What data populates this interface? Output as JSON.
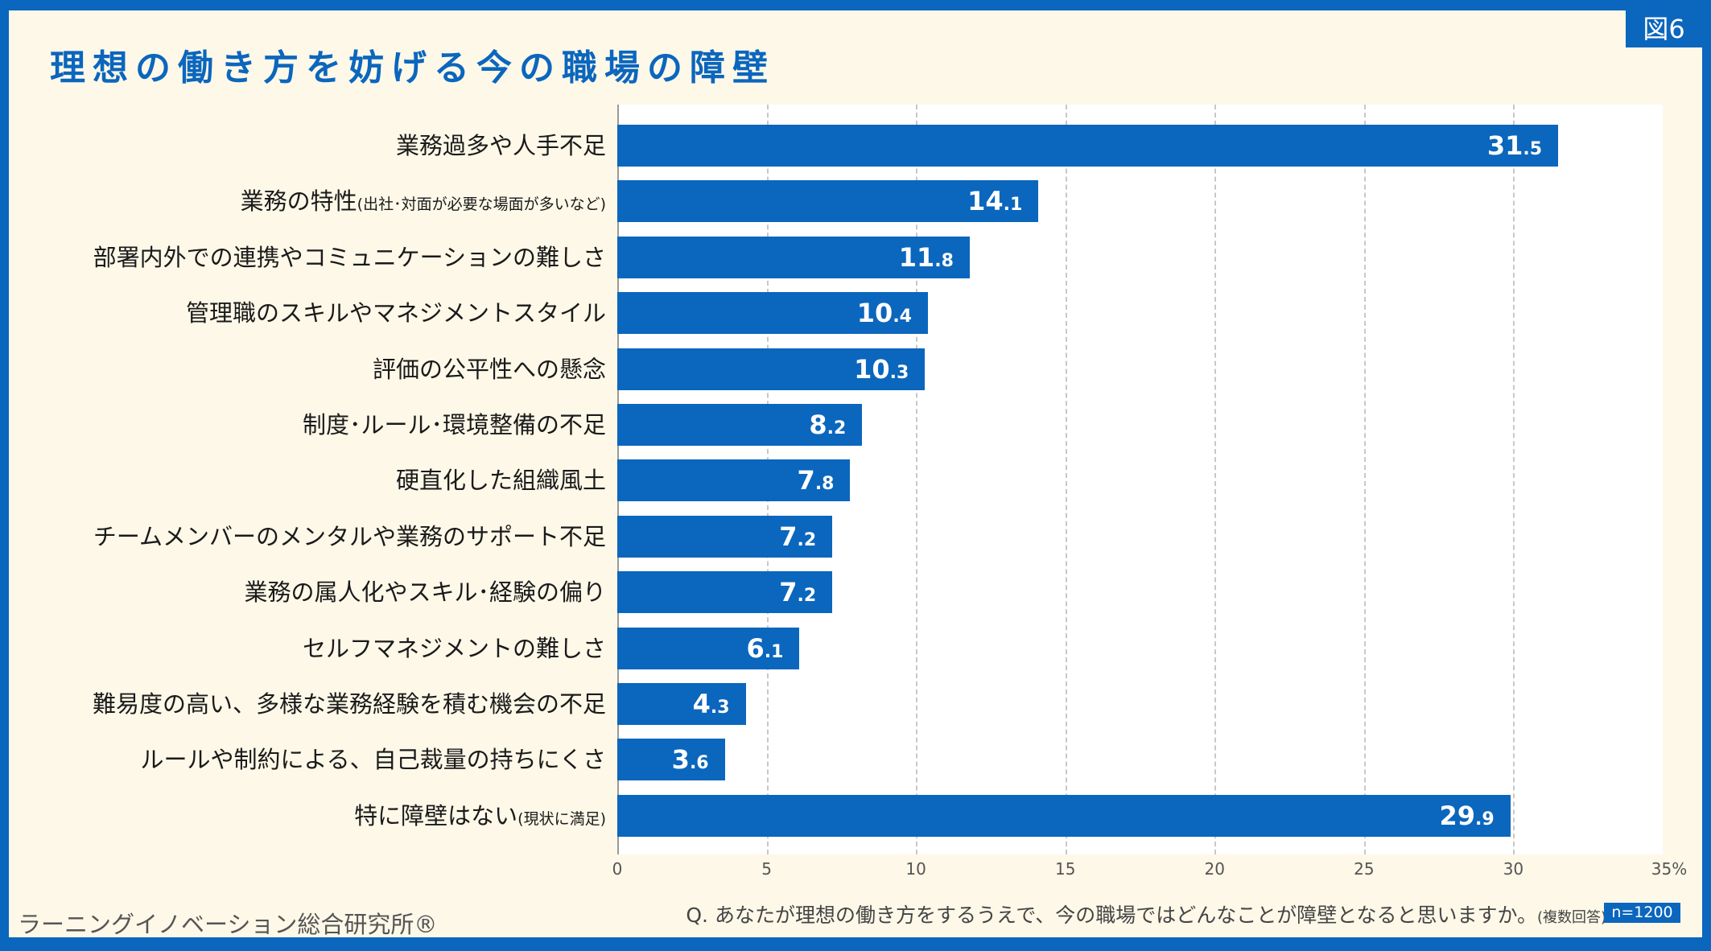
{
  "header": {
    "title": "理想の働き方を妨げる今の職場の障壁",
    "figure_badge": "図6"
  },
  "footer": {
    "source": "ラーニングイノベーション総合研究所®",
    "question": "Q. あなたが理想の働き方をするうえで、今の職場ではどんなことが障壁となると思いますか。",
    "question_note": "(複数回答)",
    "sample_size": "n=1200"
  },
  "colors": {
    "bar": "#0b66bd",
    "frame": "#0b66bd",
    "background": "#fdf8e8"
  },
  "chart_data": {
    "type": "bar",
    "orientation": "horizontal",
    "title": "理想の働き方を妨げる今の職場の障壁",
    "categories": [
      {
        "label": "業務過多や人手不足",
        "note": ""
      },
      {
        "label": "業務の特性",
        "note": "(出社･対面が必要な場面が多いなど)"
      },
      {
        "label": "部署内外での連携やコミュニケーションの難しさ",
        "note": ""
      },
      {
        "label": "管理職のスキルやマネジメントスタイル",
        "note": ""
      },
      {
        "label": "評価の公平性への懸念",
        "note": ""
      },
      {
        "label": "制度･ルール･環境整備の不足",
        "note": ""
      },
      {
        "label": "硬直化した組織風土",
        "note": ""
      },
      {
        "label": "チームメンバーのメンタルや業務のサポート不足",
        "note": ""
      },
      {
        "label": "業務の属人化やスキル･経験の偏り",
        "note": ""
      },
      {
        "label": "セルフマネジメントの難しさ",
        "note": ""
      },
      {
        "label": "難易度の高い、多様な業務経験を積む機会の不足",
        "note": ""
      },
      {
        "label": "ルールや制約による、自己裁量の持ちにくさ",
        "note": ""
      },
      {
        "label": "特に障壁はない",
        "note": "(現状に満足)"
      }
    ],
    "values": [
      31.5,
      14.1,
      11.8,
      10.4,
      10.3,
      8.2,
      7.8,
      7.2,
      7.2,
      6.1,
      4.3,
      3.6,
      29.9
    ],
    "xlim": [
      0,
      35
    ],
    "xticks": [
      "0",
      "5",
      "10",
      "15",
      "20",
      "25",
      "30",
      "35%"
    ],
    "grid": true
  }
}
